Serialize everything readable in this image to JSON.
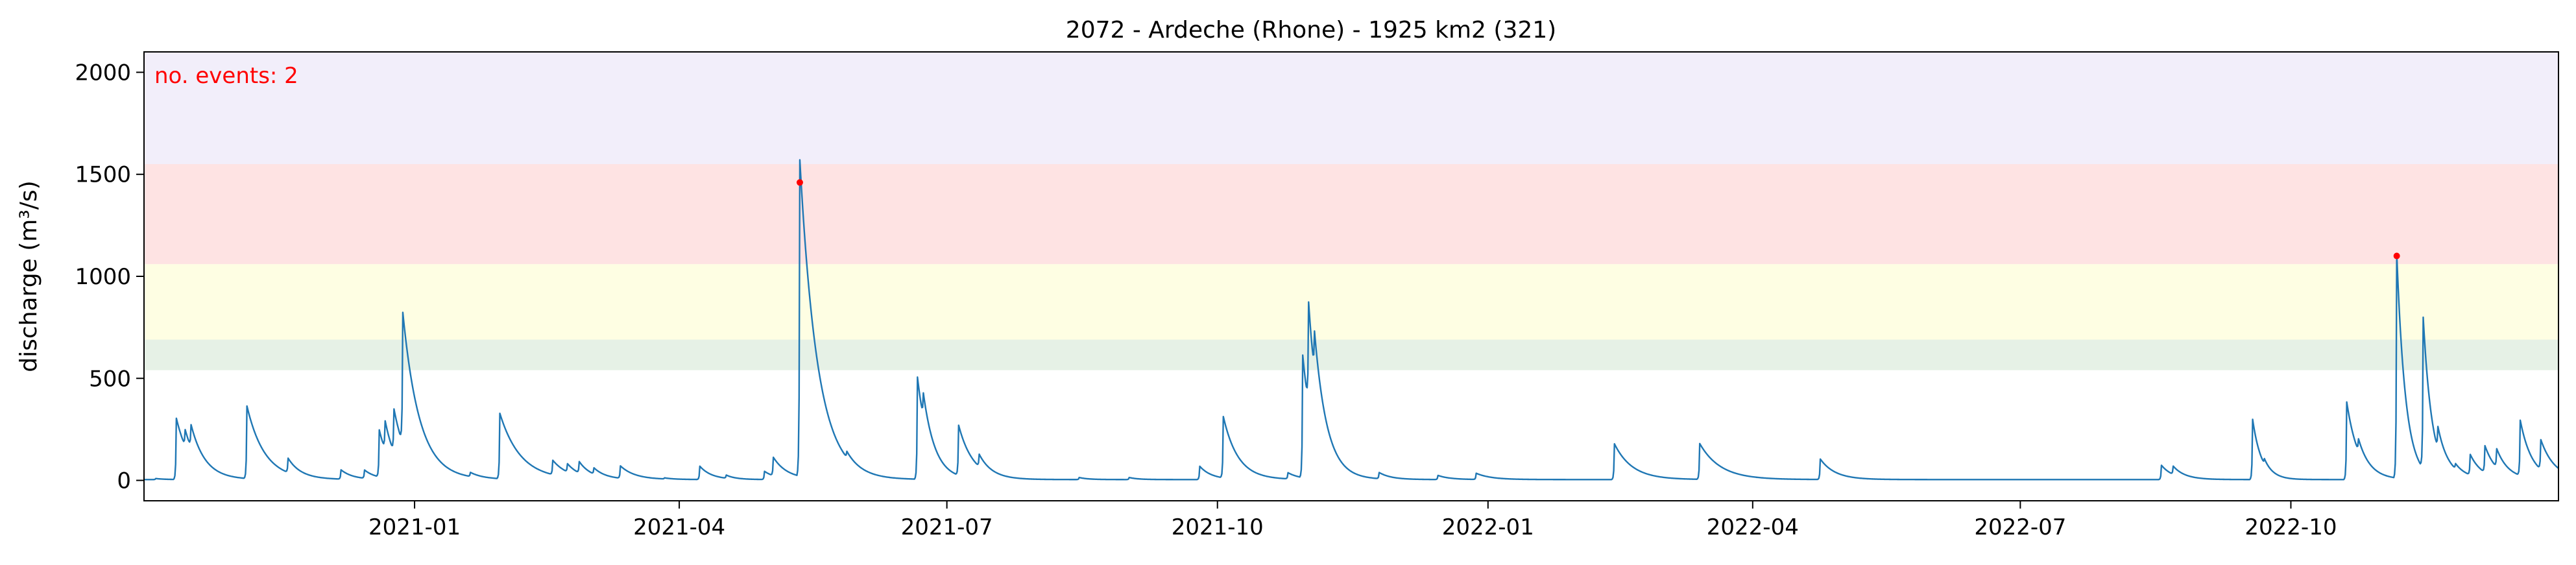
{
  "chart_data": {
    "type": "line",
    "title": "2072 - Ardeche (Rhone) - 1925 km2 (321)",
    "xlabel": "",
    "ylabel": "discharge (m³/s)",
    "ylim": [
      -100,
      2100
    ],
    "xlim": [
      "2020-10-01",
      "2022-12-31"
    ],
    "grid": false,
    "annotation": "no. events: 2",
    "x_ticks": [
      "2021-01-01",
      "2021-04-01",
      "2021-07-01",
      "2021-10-01",
      "2022-01-01",
      "2022-04-01",
      "2022-07-01",
      "2022-10-01"
    ],
    "x_tick_labels": [
      "2021-01",
      "2021-04",
      "2021-07",
      "2021-10",
      "2022-01",
      "2022-04",
      "2022-07",
      "2022-10"
    ],
    "y_ticks": [
      0,
      500,
      1000,
      1500,
      2000
    ],
    "y_tick_labels": [
      "0",
      "500",
      "1000",
      "1500",
      "2000"
    ],
    "threshold_bands": [
      {
        "from": 540,
        "to": 690,
        "color": "#e6f1e6"
      },
      {
        "from": 690,
        "to": 1060,
        "color": "#fefee3"
      },
      {
        "from": 1060,
        "to": 1550,
        "color": "#fee3e3"
      },
      {
        "from": 1550,
        "to": 2100,
        "color": "#f2eefa"
      }
    ],
    "series": [
      {
        "color": "#1f77b4",
        "peaks": [
          [
            "2020-10-05",
            5,
            3
          ],
          [
            "2020-10-12",
            300,
            5
          ],
          [
            "2020-10-15",
            80,
            4
          ],
          [
            "2020-10-17",
            110,
            5
          ],
          [
            "2020-11-05",
            355,
            6
          ],
          [
            "2020-11-19",
            70,
            4
          ],
          [
            "2020-12-07",
            45,
            4
          ],
          [
            "2020-12-15",
            40,
            4
          ],
          [
            "2020-12-20",
            230,
            4
          ],
          [
            "2020-12-22",
            140,
            4
          ],
          [
            "2020-12-25",
            210,
            5
          ],
          [
            "2020-12-28",
            640,
            6
          ],
          [
            "2021-01-20",
            20,
            4
          ],
          [
            "2021-01-30",
            320,
            7
          ],
          [
            "2021-02-17",
            70,
            5
          ],
          [
            "2021-02-22",
            40,
            4
          ],
          [
            "2021-02-26",
            55,
            4
          ],
          [
            "2021-03-03",
            30,
            4
          ],
          [
            "2021-03-12",
            60,
            5
          ],
          [
            "2021-03-27",
            5,
            3
          ],
          [
            "2021-04-08",
            65,
            4
          ],
          [
            "2021-04-17",
            15,
            3
          ],
          [
            "2021-04-30",
            40,
            4
          ],
          [
            "2021-05-03",
            90,
            5
          ],
          [
            "2021-05-12",
            1550,
            6
          ],
          [
            "2021-05-28",
            30,
            4
          ],
          [
            "2021-06-21",
            500,
            4
          ],
          [
            "2021-06-23",
            120,
            4
          ],
          [
            "2021-07-05",
            245,
            5
          ],
          [
            "2021-07-12",
            60,
            4
          ],
          [
            "2021-08-15",
            10,
            3
          ],
          [
            "2021-09-01",
            10,
            3
          ],
          [
            "2021-09-25",
            65,
            4
          ],
          [
            "2021-10-03",
            300,
            5
          ],
          [
            "2021-10-25",
            30,
            4
          ],
          [
            "2021-10-30",
            600,
            4
          ],
          [
            "2021-11-01",
            500,
            4
          ],
          [
            "2021-11-03",
            200,
            5
          ],
          [
            "2021-11-25",
            30,
            4
          ],
          [
            "2021-12-15",
            20,
            4
          ],
          [
            "2021-12-28",
            30,
            5
          ],
          [
            "2022-02-13",
            175,
            6
          ],
          [
            "2022-03-14",
            175,
            7
          ],
          [
            "2022-04-24",
            100,
            5
          ],
          [
            "2022-08-18",
            70,
            4
          ],
          [
            "2022-08-22",
            40,
            4
          ],
          [
            "2022-09-18",
            295,
            3
          ],
          [
            "2022-09-22",
            25,
            3
          ],
          [
            "2022-10-20",
            380,
            4
          ],
          [
            "2022-10-24",
            60,
            4
          ],
          [
            "2022-11-06",
            1100,
            3
          ],
          [
            "2022-11-15",
            740,
            3
          ],
          [
            "2022-11-20",
            110,
            5
          ],
          [
            "2022-11-26",
            25,
            4
          ],
          [
            "2022-12-01",
            100,
            4
          ],
          [
            "2022-12-06",
            130,
            4
          ],
          [
            "2022-12-10",
            90,
            4
          ],
          [
            "2022-12-18",
            270,
            4
          ],
          [
            "2022-12-25",
            145,
            5
          ]
        ]
      }
    ],
    "events": [
      {
        "x": "2021-05-12",
        "y": 1460,
        "color": "#ff0000"
      },
      {
        "x": "2022-11-06",
        "y": 1100,
        "color": "#ff0000"
      }
    ]
  }
}
